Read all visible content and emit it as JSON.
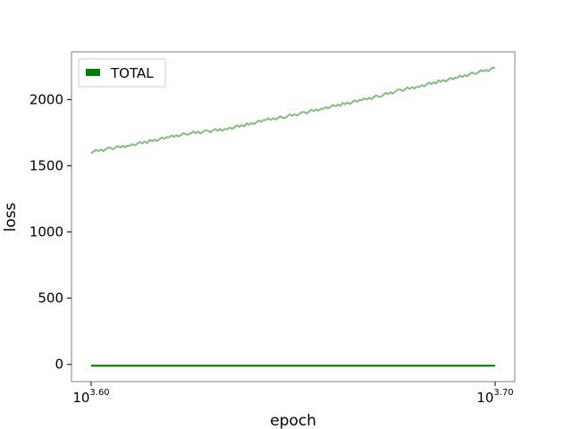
{
  "chart_data": {
    "type": "line",
    "title": "",
    "xlabel": "epoch",
    "ylabel": "loss",
    "x_scale": "log",
    "xlim": [
      3981,
      5012
    ],
    "ylim": [
      -130,
      2360
    ],
    "y_ticks": [
      0,
      500,
      1000,
      1500,
      2000
    ],
    "x_ticks": [
      {
        "value": 3981,
        "base": "10",
        "exp": "3.60"
      },
      {
        "value": 5012,
        "base": "10",
        "exp": "3.70"
      }
    ],
    "legend": {
      "position": "upper-left",
      "entries": [
        "TOTAL"
      ]
    },
    "colors": {
      "total": "#008000",
      "total_faded": "#7fbf7f",
      "frame": "#808080"
    },
    "series": [
      {
        "name": "TOTAL",
        "style": "faded",
        "x": [
          3981,
          4025,
          4070,
          4116,
          4162,
          4208,
          4255,
          4302,
          4350,
          4398,
          4446,
          4495,
          4545,
          4595,
          4645,
          4696,
          4748,
          4800,
          4853,
          4906,
          4959,
          5012
        ],
        "y": [
          1605,
          1630,
          1655,
          1685,
          1715,
          1745,
          1760,
          1780,
          1810,
          1845,
          1870,
          1900,
          1935,
          1965,
          1995,
          2030,
          2070,
          2100,
          2135,
          2165,
          2205,
          2235
        ]
      },
      {
        "name": "TOTAL",
        "style": "solid",
        "x": [
          3981,
          4495,
          5012
        ],
        "y": [
          -10,
          -10,
          -10
        ]
      }
    ]
  }
}
